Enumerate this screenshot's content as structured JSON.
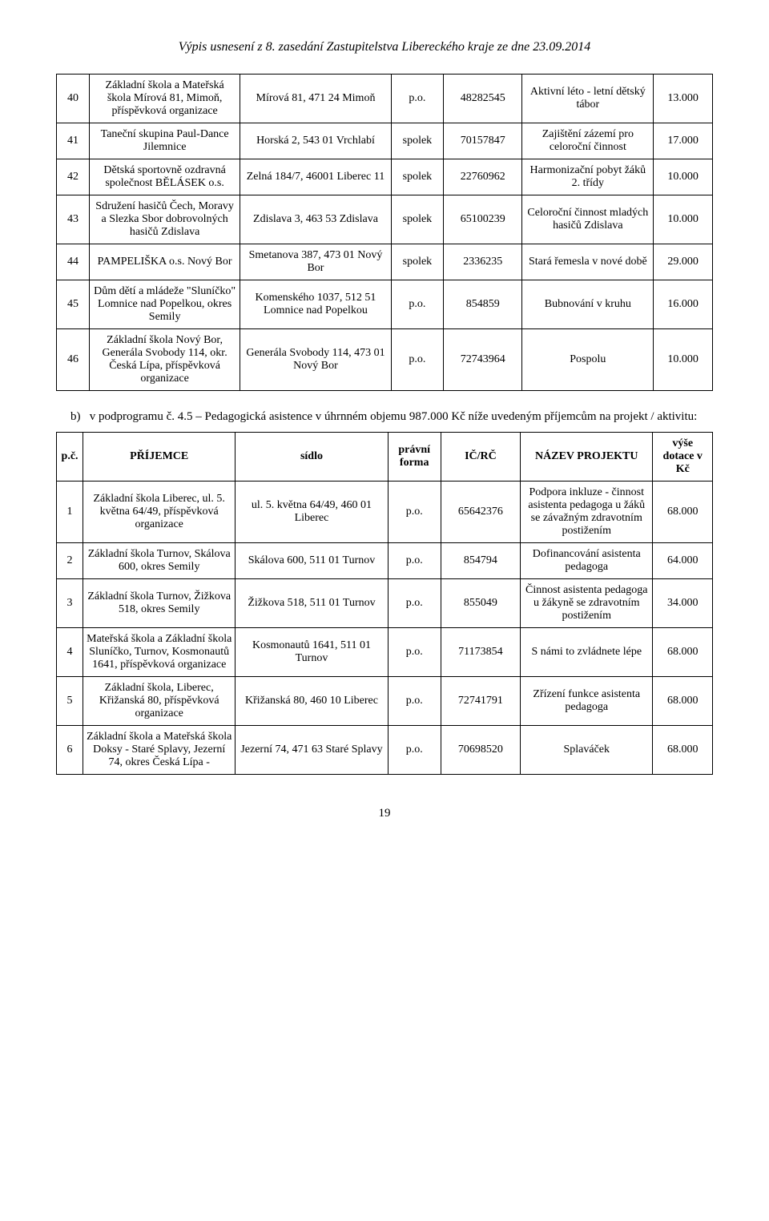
{
  "header": {
    "title": "Výpis usnesení z 8. zasedání Zastupitelstva Libereckého kraje ze dne 23.09.2014"
  },
  "table1": {
    "rows": [
      {
        "n": "40",
        "recipient": "Základní škola a Mateřská škola Mírová 81, Mimoň, příspěvková organizace",
        "addr": "Mírová 81, 471 24 Mimoň",
        "form": "p.o.",
        "ic": "48282545",
        "project": "Aktivní léto - letní dětský tábor",
        "amount": "13.000"
      },
      {
        "n": "41",
        "recipient": "Taneční skupina Paul-Dance Jilemnice",
        "addr": "Horská 2, 543 01 Vrchlabí",
        "form": "spolek",
        "ic": "70157847",
        "project": "Zajištění zázemí pro celoroční činnost",
        "amount": "17.000"
      },
      {
        "n": "42",
        "recipient": "Dětská sportovně ozdravná společnost BĚLÁSEK o.s.",
        "addr": "Zelná 184/7, 46001 Liberec 11",
        "form": "spolek",
        "ic": "22760962",
        "project": "Harmonizační pobyt žáků 2. třídy",
        "amount": "10.000"
      },
      {
        "n": "43",
        "recipient": "Sdružení hasičů Čech, Moravy a Slezka Sbor dobrovolných hasičů Zdislava",
        "addr": "Zdislava 3, 463 53 Zdislava",
        "form": "spolek",
        "ic": "65100239",
        "project": "Celoroční činnost mladých hasičů Zdislava",
        "amount": "10.000"
      },
      {
        "n": "44",
        "recipient": "PAMPELIŠKA o.s. Nový Bor",
        "addr": "Smetanova 387, 473 01 Nový Bor",
        "form": "spolek",
        "ic": "2336235",
        "project": "Stará řemesla v nové době",
        "amount": "29.000"
      },
      {
        "n": "45",
        "recipient": "Dům dětí a mládeže \"Sluníčko\" Lomnice nad Popelkou, okres Semily",
        "addr": "Komenského 1037, 512 51 Lomnice nad Popelkou",
        "form": "p.o.",
        "ic": "854859",
        "project": "Bubnování v kruhu",
        "amount": "16.000"
      },
      {
        "n": "46",
        "recipient": "Základní škola Nový Bor, Generála Svobody 114, okr. Česká Lípa, příspěvková organizace",
        "addr": "Generála Svobody 114, 473 01 Nový Bor",
        "form": "p.o.",
        "ic": "72743964",
        "project": "Pospolu",
        "amount": "10.000"
      }
    ]
  },
  "subsection": {
    "label": "b)",
    "text": "v podprogramu č. 4.5 – Pedagogická asistence v úhrnném objemu 987.000 Kč níže uvedeným příjemcům na projekt / aktivitu:"
  },
  "table2": {
    "headers": {
      "num": "p.č.",
      "recipient": "PŘÍJEMCE",
      "addr": "sídlo",
      "form": "právní forma",
      "ic": "IČ/RČ",
      "project": "NÁZEV PROJEKTU",
      "amount": "výše dotace v Kč"
    },
    "rows": [
      {
        "n": "1",
        "recipient": "Základní škola Liberec, ul. 5. května 64/49, příspěvková organizace",
        "addr": "ul. 5. května 64/49, 460 01 Liberec",
        "form": "p.o.",
        "ic": "65642376",
        "project": "Podpora inkluze - činnost asistenta pedagoga u žáků se závažným zdravotním postižením",
        "amount": "68.000"
      },
      {
        "n": "2",
        "recipient": "Základní škola Turnov, Skálova 600, okres Semily",
        "addr": "Skálova 600, 511 01 Turnov",
        "form": "p.o.",
        "ic": "854794",
        "project": "Dofinancování asistenta pedagoga",
        "amount": "64.000"
      },
      {
        "n": "3",
        "recipient": "Základní škola Turnov, Žižkova 518, okres Semily",
        "addr": "Žižkova 518, 511 01 Turnov",
        "form": "p.o.",
        "ic": "855049",
        "project": "Činnost asistenta pedagoga u žákyně se zdravotním postižením",
        "amount": "34.000"
      },
      {
        "n": "4",
        "recipient": "Mateřská škola a Základní škola Sluníčko, Turnov, Kosmonautů 1641, příspěvková organizace",
        "addr": "Kosmonautů 1641, 511 01 Turnov",
        "form": "p.o.",
        "ic": "71173854",
        "project": "S námi to zvládnete lépe",
        "amount": "68.000"
      },
      {
        "n": "5",
        "recipient": "Základní škola, Liberec, Křižanská 80, příspěvková organizace",
        "addr": "Křižanská 80, 460 10 Liberec",
        "form": "p.o.",
        "ic": "72741791",
        "project": "Zřízení funkce asistenta pedagoga",
        "amount": "68.000"
      },
      {
        "n": "6",
        "recipient": "Základní škola a Mateřská škola Doksy - Staré Splavy, Jezerní 74, okres Česká Lípa -",
        "addr": "Jezerní 74, 471 63 Staré Splavy",
        "form": "p.o.",
        "ic": "70698520",
        "project": "Splaváček",
        "amount": "68.000"
      }
    ]
  },
  "pageNumber": "19"
}
